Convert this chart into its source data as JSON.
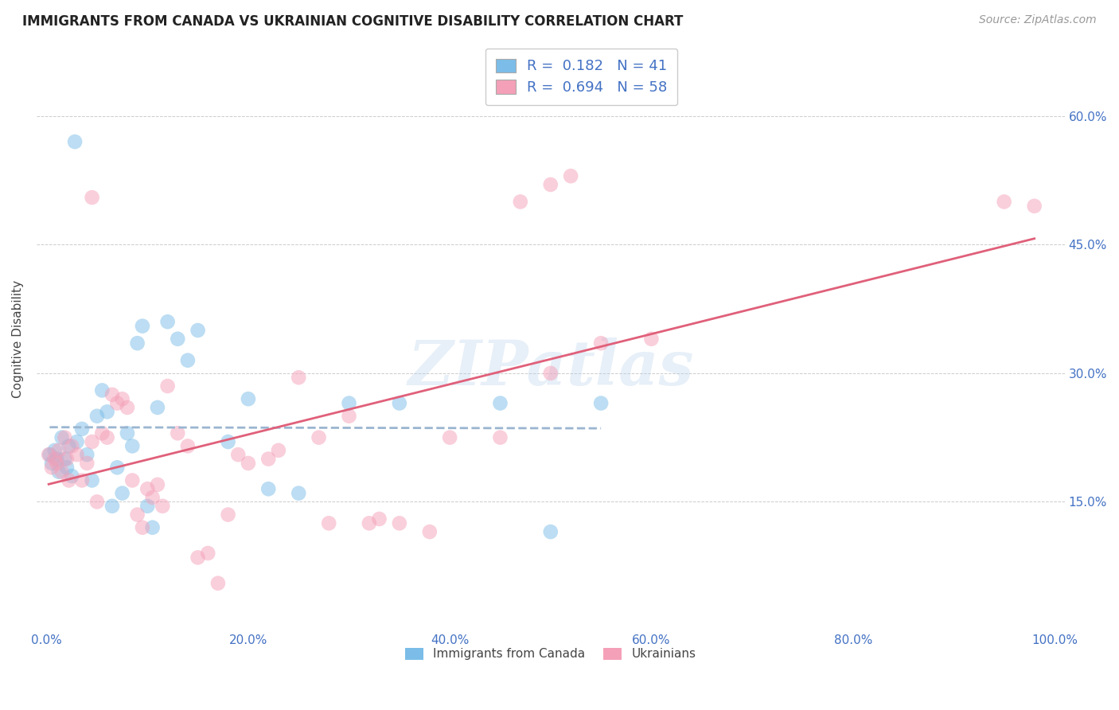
{
  "title": "IMMIGRANTS FROM CANADA VS UKRAINIAN COGNITIVE DISABILITY CORRELATION CHART",
  "source": "Source: ZipAtlas.com",
  "ylabel": "Cognitive Disability",
  "x_tick_positions": [
    0,
    20,
    40,
    60,
    80,
    100
  ],
  "y_tick_positions": [
    15,
    30,
    45,
    60
  ],
  "y_tick_labels": [
    "15.0%",
    "30.0%",
    "45.0%",
    "60.0%"
  ],
  "xlim": [
    -1,
    101
  ],
  "ylim": [
    0,
    68
  ],
  "legend_labels": [
    "Immigrants from Canada",
    "Ukrainians"
  ],
  "canada_R": 0.182,
  "canada_N": 41,
  "ukraine_R": 0.694,
  "ukraine_N": 58,
  "color_canada": "#7bbde8",
  "color_ukraine": "#f4a0b8",
  "color_canada_line": "#3a7fc1",
  "color_ukraine_line": "#e0607a",
  "watermark": "ZIPatlas",
  "background_color": "#ffffff",
  "canada_scatter": [
    [
      0.3,
      20.5
    ],
    [
      0.5,
      19.5
    ],
    [
      0.8,
      21.0
    ],
    [
      1.0,
      20.0
    ],
    [
      1.2,
      18.5
    ],
    [
      1.5,
      22.5
    ],
    [
      1.8,
      20.0
    ],
    [
      2.0,
      19.0
    ],
    [
      2.2,
      21.5
    ],
    [
      2.5,
      18.0
    ],
    [
      2.8,
      57.0
    ],
    [
      3.0,
      22.0
    ],
    [
      3.5,
      23.5
    ],
    [
      4.0,
      20.5
    ],
    [
      4.5,
      17.5
    ],
    [
      5.0,
      25.0
    ],
    [
      5.5,
      28.0
    ],
    [
      6.0,
      25.5
    ],
    [
      6.5,
      14.5
    ],
    [
      7.0,
      19.0
    ],
    [
      7.5,
      16.0
    ],
    [
      8.0,
      23.0
    ],
    [
      8.5,
      21.5
    ],
    [
      9.0,
      33.5
    ],
    [
      9.5,
      35.5
    ],
    [
      10.0,
      14.5
    ],
    [
      10.5,
      12.0
    ],
    [
      11.0,
      26.0
    ],
    [
      12.0,
      36.0
    ],
    [
      13.0,
      34.0
    ],
    [
      14.0,
      31.5
    ],
    [
      15.0,
      35.0
    ],
    [
      18.0,
      22.0
    ],
    [
      20.0,
      27.0
    ],
    [
      22.0,
      16.5
    ],
    [
      25.0,
      16.0
    ],
    [
      30.0,
      26.5
    ],
    [
      35.0,
      26.5
    ],
    [
      45.0,
      26.5
    ],
    [
      50.0,
      11.5
    ],
    [
      55.0,
      26.5
    ]
  ],
  "ukraine_scatter": [
    [
      0.2,
      20.5
    ],
    [
      0.5,
      19.0
    ],
    [
      0.8,
      20.0
    ],
    [
      1.0,
      19.5
    ],
    [
      1.2,
      21.0
    ],
    [
      1.5,
      18.5
    ],
    [
      1.8,
      22.5
    ],
    [
      2.0,
      20.0
    ],
    [
      2.2,
      17.5
    ],
    [
      2.5,
      21.5
    ],
    [
      3.0,
      20.5
    ],
    [
      3.5,
      17.5
    ],
    [
      4.0,
      19.5
    ],
    [
      4.5,
      22.0
    ],
    [
      5.0,
      15.0
    ],
    [
      5.5,
      23.0
    ],
    [
      6.0,
      22.5
    ],
    [
      6.5,
      27.5
    ],
    [
      7.0,
      26.5
    ],
    [
      7.5,
      27.0
    ],
    [
      8.0,
      26.0
    ],
    [
      8.5,
      17.5
    ],
    [
      9.0,
      13.5
    ],
    [
      9.5,
      12.0
    ],
    [
      10.0,
      16.5
    ],
    [
      10.5,
      15.5
    ],
    [
      11.0,
      17.0
    ],
    [
      11.5,
      14.5
    ],
    [
      12.0,
      28.5
    ],
    [
      13.0,
      23.0
    ],
    [
      14.0,
      21.5
    ],
    [
      15.0,
      8.5
    ],
    [
      16.0,
      9.0
    ],
    [
      17.0,
      5.5
    ],
    [
      18.0,
      13.5
    ],
    [
      19.0,
      20.5
    ],
    [
      20.0,
      19.5
    ],
    [
      22.0,
      20.0
    ],
    [
      23.0,
      21.0
    ],
    [
      25.0,
      29.5
    ],
    [
      27.0,
      22.5
    ],
    [
      28.0,
      12.5
    ],
    [
      30.0,
      25.0
    ],
    [
      32.0,
      12.5
    ],
    [
      33.0,
      13.0
    ],
    [
      35.0,
      12.5
    ],
    [
      38.0,
      11.5
    ],
    [
      40.0,
      22.5
    ],
    [
      45.0,
      22.5
    ],
    [
      50.0,
      30.0
    ],
    [
      55.0,
      33.5
    ],
    [
      60.0,
      34.0
    ],
    [
      4.5,
      50.5
    ],
    [
      47.0,
      50.0
    ],
    [
      50.0,
      52.0
    ],
    [
      52.0,
      53.0
    ],
    [
      95.0,
      50.0
    ],
    [
      98.0,
      49.5
    ]
  ]
}
